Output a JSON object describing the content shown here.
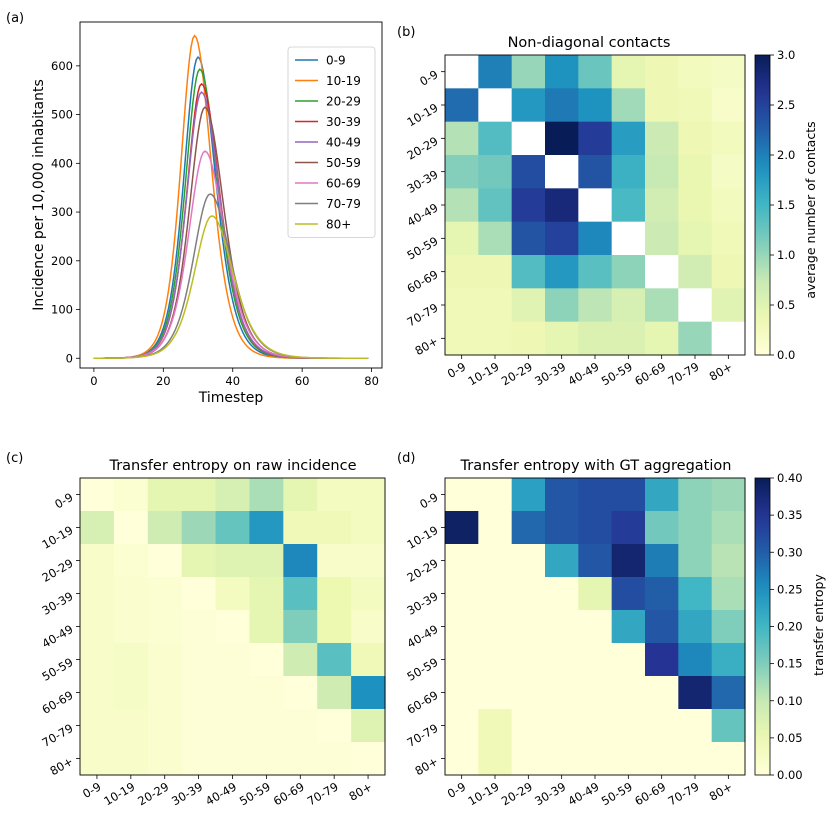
{
  "panels": {
    "a": "(a)",
    "b": "(b)",
    "c": "(c)",
    "d": "(d)"
  },
  "age_groups": [
    "0-9",
    "10-19",
    "20-29",
    "30-39",
    "40-49",
    "50-59",
    "60-69",
    "70-79",
    "80+"
  ],
  "chart_data": [
    {
      "id": "a",
      "type": "line",
      "title": "",
      "xlabel": "Timestep",
      "ylabel": "Incidence per 10,000 inhabitants",
      "xlim": [
        -4,
        83
      ],
      "ylim": [
        -20,
        690
      ],
      "xticks": [
        "0",
        "20",
        "40",
        "60",
        "80"
      ],
      "xtick_values": [
        0,
        20,
        40,
        60,
        80
      ],
      "yticks": [
        "0",
        "100",
        "200",
        "300",
        "400",
        "500",
        "600"
      ],
      "ytick_values": [
        0,
        100,
        200,
        300,
        400,
        500,
        600
      ],
      "legend_position": "top-right",
      "series": [
        {
          "name": "0-9",
          "color": "#1f77b4",
          "peak": 618,
          "peak_t": 30,
          "left_width": 5.5,
          "right_width": 6.8
        },
        {
          "name": "10-19",
          "color": "#ff7f0e",
          "peak": 662,
          "peak_t": 29,
          "left_width": 5.3,
          "right_width": 6.5
        },
        {
          "name": "20-29",
          "color": "#2ca02c",
          "peak": 593,
          "peak_t": 30.5,
          "left_width": 5.6,
          "right_width": 7.0
        },
        {
          "name": "30-39",
          "color": "#d62728",
          "peak": 563,
          "peak_t": 31,
          "left_width": 5.7,
          "right_width": 7.1
        },
        {
          "name": "40-49",
          "color": "#9467bd",
          "peak": 546,
          "peak_t": 31,
          "left_width": 5.8,
          "right_width": 7.2
        },
        {
          "name": "50-59",
          "color": "#8c564b",
          "peak": 515,
          "peak_t": 32,
          "left_width": 6.0,
          "right_width": 7.3
        },
        {
          "name": "60-69",
          "color": "#e377c2",
          "peak": 425,
          "peak_t": 32,
          "left_width": 6.3,
          "right_width": 7.6
        },
        {
          "name": "70-79",
          "color": "#7f7f7f",
          "peak": 337,
          "peak_t": 33.5,
          "left_width": 6.6,
          "right_width": 8.0
        },
        {
          "name": "80+",
          "color": "#bcbd22",
          "peak": 292,
          "peak_t": 34,
          "left_width": 6.8,
          "right_width": 8.2
        }
      ]
    },
    {
      "id": "b",
      "type": "heatmap",
      "title": "Non-diagonal contacts",
      "xlabel": "",
      "ylabel": "",
      "colormap": "YlGnBu",
      "vmin": 0,
      "vmax": 3.0,
      "colorbar_label": "average number of contacts",
      "colorbar_ticks": [
        "0.0",
        "0.5",
        "1.0",
        "1.5",
        "2.0",
        "2.5",
        "3.0"
      ],
      "colorbar_tick_values": [
        0,
        0.5,
        1,
        1.5,
        2,
        2.5,
        3
      ],
      "diagonal_blank": true,
      "values": [
        [
          0,
          2.0,
          1.0,
          1.85,
          1.25,
          0.45,
          0.35,
          0.25,
          0.2
        ],
        [
          2.15,
          0,
          1.8,
          2.05,
          1.85,
          0.95,
          0.35,
          0.3,
          0.15
        ],
        [
          0.85,
          1.4,
          0,
          3.0,
          2.55,
          1.75,
          0.7,
          0.35,
          0.25
        ],
        [
          1.1,
          1.2,
          2.4,
          0,
          2.35,
          1.55,
          0.75,
          0.4,
          0.2
        ],
        [
          0.85,
          1.3,
          2.55,
          2.8,
          0,
          1.45,
          0.65,
          0.4,
          0.25
        ],
        [
          0.45,
          0.9,
          2.35,
          2.5,
          1.95,
          0,
          0.7,
          0.45,
          0.3
        ],
        [
          0.35,
          0.35,
          1.4,
          1.8,
          1.35,
          1.05,
          0,
          0.65,
          0.35
        ],
        [
          0.3,
          0.3,
          0.5,
          1.05,
          0.8,
          0.6,
          0.9,
          0,
          0.5
        ],
        [
          0.3,
          0.3,
          0.35,
          0.45,
          0.55,
          0.55,
          0.45,
          1.0,
          0
        ]
      ]
    },
    {
      "id": "c",
      "type": "heatmap",
      "title": "Transfer entropy on raw incidence",
      "colormap": "YlGnBu",
      "vmin": 0,
      "vmax": 0.4,
      "values": [
        [
          0,
          0.01,
          0.06,
          0.06,
          0.08,
          0.12,
          0.06,
          0.03,
          0.03
        ],
        [
          0.08,
          0,
          0.09,
          0.13,
          0.17,
          0.24,
          0.04,
          0.04,
          0.03
        ],
        [
          0.02,
          0.01,
          0,
          0.06,
          0.07,
          0.07,
          0.26,
          0.02,
          0.02
        ],
        [
          0.02,
          0.015,
          0.01,
          0,
          0.03,
          0.06,
          0.18,
          0.05,
          0.03
        ],
        [
          0.02,
          0.015,
          0.01,
          0.005,
          0,
          0.06,
          0.15,
          0.05,
          0.02
        ],
        [
          0.02,
          0.025,
          0.015,
          0.005,
          0.005,
          0,
          0.09,
          0.18,
          0.04
        ],
        [
          0.02,
          0.025,
          0.015,
          0.005,
          0.005,
          0.005,
          0,
          0.09,
          0.25
        ],
        [
          0.02,
          0.02,
          0.015,
          0.005,
          0.005,
          0.005,
          0.005,
          0,
          0.07
        ],
        [
          0.02,
          0.02,
          0.015,
          0.005,
          0.005,
          0.005,
          0.005,
          0.005,
          0
        ]
      ]
    },
    {
      "id": "d",
      "type": "heatmap",
      "title": "Transfer entropy with GT aggregation",
      "colormap": "YlGnBu",
      "vmin": 0,
      "vmax": 0.4,
      "colorbar_label": "transfer entropy",
      "colorbar_ticks": [
        "0.00",
        "0.05",
        "0.10",
        "0.15",
        "0.20",
        "0.25",
        "0.30",
        "0.35",
        "0.40"
      ],
      "colorbar_tick_values": [
        0,
        0.05,
        0.1,
        0.15,
        0.2,
        0.25,
        0.3,
        0.35,
        0.4
      ],
      "values": [
        [
          0,
          0,
          0.23,
          0.31,
          0.32,
          0.32,
          0.22,
          0.14,
          0.13
        ],
        [
          0.39,
          0,
          0.29,
          0.31,
          0.32,
          0.34,
          0.16,
          0.14,
          0.12
        ],
        [
          0,
          0,
          0,
          0.22,
          0.31,
          0.38,
          0.27,
          0.14,
          0.11
        ],
        [
          0,
          0,
          0,
          0,
          0.06,
          0.32,
          0.3,
          0.2,
          0.12
        ],
        [
          0,
          0,
          0,
          0,
          0,
          0.22,
          0.31,
          0.22,
          0.15
        ],
        [
          0,
          0,
          0,
          0,
          0,
          0,
          0.35,
          0.26,
          0.21
        ],
        [
          0,
          0,
          0,
          0,
          0,
          0,
          0,
          0.38,
          0.29
        ],
        [
          0,
          0.04,
          0,
          0,
          0,
          0,
          0,
          0,
          0.17
        ],
        [
          0,
          0.04,
          0,
          0,
          0,
          0,
          0,
          0,
          0
        ]
      ]
    }
  ]
}
